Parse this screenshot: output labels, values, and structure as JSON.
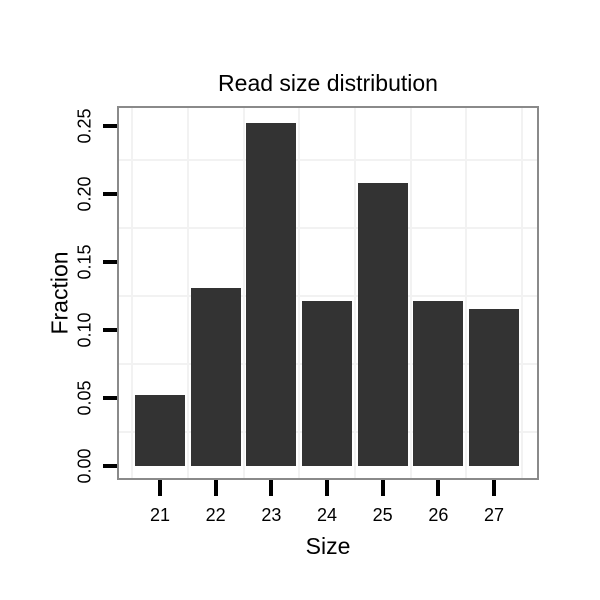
{
  "chart_data": {
    "type": "bar",
    "title": "Read size distribution",
    "xlabel": "Size",
    "ylabel": "Fraction",
    "categories": [
      "21",
      "22",
      "23",
      "24",
      "25",
      "26",
      "27"
    ],
    "values": [
      0.052,
      0.131,
      0.252,
      0.121,
      0.208,
      0.121,
      0.115
    ],
    "ytick_values": [
      0.0,
      0.05,
      0.1,
      0.15,
      0.2,
      0.25
    ],
    "ytick_labels": [
      "0.00",
      "0.05",
      "0.10",
      "0.15",
      "0.20",
      "0.25"
    ],
    "ylim": [
      -0.011,
      0.264
    ],
    "grid": "minor-gridlines-between-ticks",
    "legend": "none",
    "colors": {
      "bar_fill": "#333333",
      "panel_border": "#8a8a8a",
      "gridline": "#f2f2f2",
      "tick": "#000000",
      "text": "#000000",
      "background": "#ffffff"
    }
  }
}
